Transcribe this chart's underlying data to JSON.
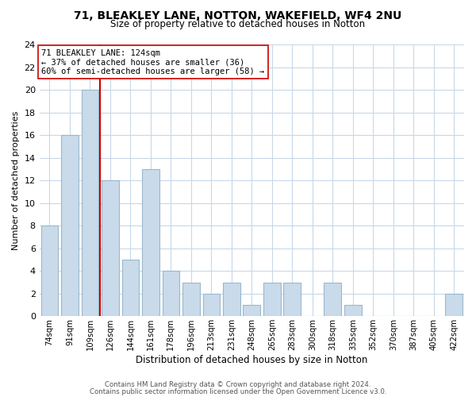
{
  "title1": "71, BLEAKLEY LANE, NOTTON, WAKEFIELD, WF4 2NU",
  "title2": "Size of property relative to detached houses in Notton",
  "xlabel": "Distribution of detached houses by size in Notton",
  "ylabel": "Number of detached properties",
  "bar_labels": [
    "74sqm",
    "91sqm",
    "109sqm",
    "126sqm",
    "144sqm",
    "161sqm",
    "178sqm",
    "196sqm",
    "213sqm",
    "231sqm",
    "248sqm",
    "265sqm",
    "283sqm",
    "300sqm",
    "318sqm",
    "335sqm",
    "352sqm",
    "370sqm",
    "387sqm",
    "405sqm",
    "422sqm"
  ],
  "bar_heights": [
    8,
    16,
    20,
    12,
    5,
    13,
    4,
    3,
    2,
    3,
    1,
    3,
    3,
    0,
    3,
    1,
    0,
    0,
    0,
    0,
    2
  ],
  "bar_color": "#c9daea",
  "bar_edge_color": "#9ab8cc",
  "subject_line_color": "#cc0000",
  "ylim": [
    0,
    24
  ],
  "yticks": [
    0,
    2,
    4,
    6,
    8,
    10,
    12,
    14,
    16,
    18,
    20,
    22,
    24
  ],
  "annotation_title": "71 BLEAKLEY LANE: 124sqm",
  "annotation_line1": "← 37% of detached houses are smaller (36)",
  "annotation_line2": "60% of semi-detached houses are larger (58) →",
  "footer1": "Contains HM Land Registry data © Crown copyright and database right 2024.",
  "footer2": "Contains public sector information licensed under the Open Government Licence v3.0.",
  "bg_color": "#ffffff",
  "grid_color": "#c8d8e8"
}
